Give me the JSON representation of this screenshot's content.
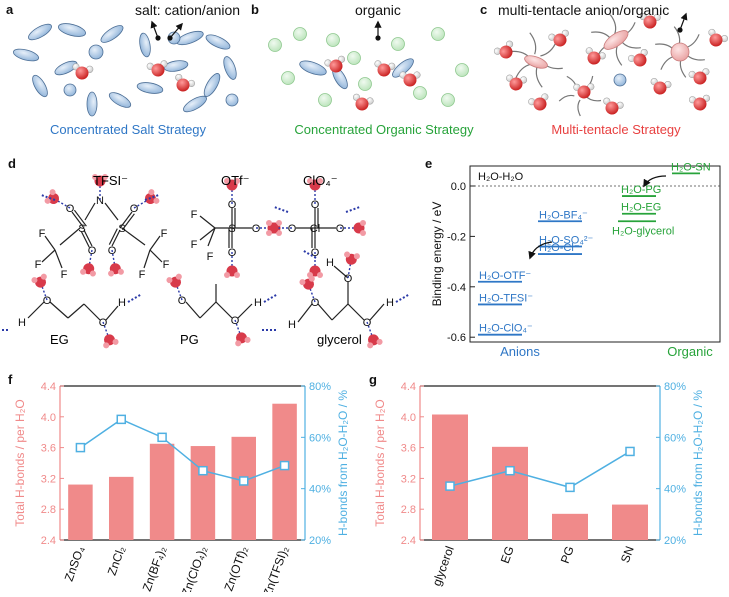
{
  "panels": {
    "a": {
      "letter": "a",
      "top_label": "salt: cation/anion",
      "caption": "Concentrated Salt Strategy"
    },
    "b": {
      "letter": "b",
      "top_label": "organic",
      "caption": "Concentrated Organic Strategy"
    },
    "c": {
      "letter": "c",
      "top_label": "multi-tentacle anion/organic",
      "caption": "Multi-tentacle Strategy"
    },
    "d": {
      "letter": "d",
      "anions": [
        "TFSI⁻",
        "OTf⁻",
        "ClO₄⁻"
      ],
      "organics": [
        "EG",
        "PG",
        "glycerol"
      ],
      "atoms": {
        "S": "S",
        "N": "N",
        "O": "O",
        "F": "F",
        "Cl": "Cl",
        "H": "H"
      }
    },
    "e": {
      "letter": "e",
      "ylabel": "Binding energy  / eV",
      "yticks": [
        "0.0",
        "-0.2",
        "-0.4",
        "-0.6"
      ],
      "reference_label": "H₂O-H₂O",
      "group_anions": "Anions",
      "group_organic": "Organic",
      "levels_anions": [
        {
          "label": "H₂O-BF₄⁻",
          "energy": -0.14
        },
        {
          "label": "H₂O-SO₄²⁻",
          "energy": -0.24
        },
        {
          "label": "H₂O-Cl⁻",
          "energy": -0.27
        },
        {
          "label": "H₂O-OTF⁻",
          "energy": -0.38
        },
        {
          "label": "H₂O-TFSI⁻",
          "energy": -0.47
        },
        {
          "label": "H₂O-ClO₄⁻",
          "energy": -0.59
        }
      ],
      "levels_organic": [
        {
          "label": "H₂O-SN",
          "energy": 0.05
        },
        {
          "label": "H₂O-PG",
          "energy": -0.04
        },
        {
          "label": "H₂O-EG",
          "energy": -0.11
        },
        {
          "label": "H₂O-glycerol",
          "energy": -0.14
        }
      ]
    },
    "f": {
      "letter": "f"
    },
    "g": {
      "letter": "g"
    }
  },
  "colors": {
    "salt": "#2f77c6",
    "organic": "#27a33a",
    "tentacle": "#e84040",
    "bar": "#f08a8a",
    "line": "#4fb0e2"
  },
  "chart_data": [
    {
      "type": "bar",
      "panel": "f",
      "categories": [
        "ZnSO4",
        "ZnCl2",
        "Zn(BF4)2",
        "Zn(ClO4)2",
        "Zn(OTf)2",
        "Zn(TFSI)2"
      ],
      "category_labels": [
        "ZnSO₄",
        "ZnCl₂",
        "Zn(BF₄)₂",
        "Zn(ClO₄)₂",
        "Zn(OTf)₂",
        "Zn(TFSI)₂"
      ],
      "series": [
        {
          "name": "Total H-bonds / per H₂O",
          "type": "bar",
          "axis": "left",
          "values": [
            3.12,
            3.22,
            3.65,
            3.62,
            3.74,
            4.17
          ]
        },
        {
          "name": "H-bonds from H₂O-H₂O / %",
          "type": "line",
          "axis": "right",
          "values": [
            56,
            67,
            60,
            47,
            43,
            49
          ]
        }
      ],
      "ylabel": "Total H-bonds / per H₂O",
      "ylabel_right": "H-bonds from H₂O-H₂O / %",
      "ylim": [
        2.4,
        4.4
      ],
      "ylim_right": [
        20,
        80
      ],
      "yticks": [
        "2.4",
        "2.8",
        "3.2",
        "3.6",
        "4.0",
        "4.4"
      ],
      "yticks_right": [
        "20%",
        "40%",
        "60%",
        "80%"
      ]
    },
    {
      "type": "bar",
      "panel": "g",
      "categories": [
        "glycerol",
        "EG",
        "PG",
        "SN"
      ],
      "category_labels": [
        "glycerol",
        "EG",
        "PG",
        "SN"
      ],
      "series": [
        {
          "name": "Total H-bonds / per H₂O",
          "type": "bar",
          "axis": "left",
          "values": [
            4.03,
            3.61,
            2.74,
            2.86
          ]
        },
        {
          "name": "H-bonds from H₂O-H₂O / %",
          "type": "line",
          "axis": "right",
          "values": [
            41,
            47,
            40.5,
            54.5
          ]
        }
      ],
      "ylabel": "Total H-bonds / per H₂O",
      "ylabel_right": "H-bonds from H₂O-H₂O / %",
      "ylim": [
        2.4,
        4.4
      ],
      "ylim_right": [
        20,
        80
      ],
      "yticks": [
        "2.4",
        "2.8",
        "3.2",
        "3.6",
        "4.0",
        "4.4"
      ],
      "yticks_right": [
        "20%",
        "40%",
        "60%",
        "80%"
      ]
    }
  ]
}
